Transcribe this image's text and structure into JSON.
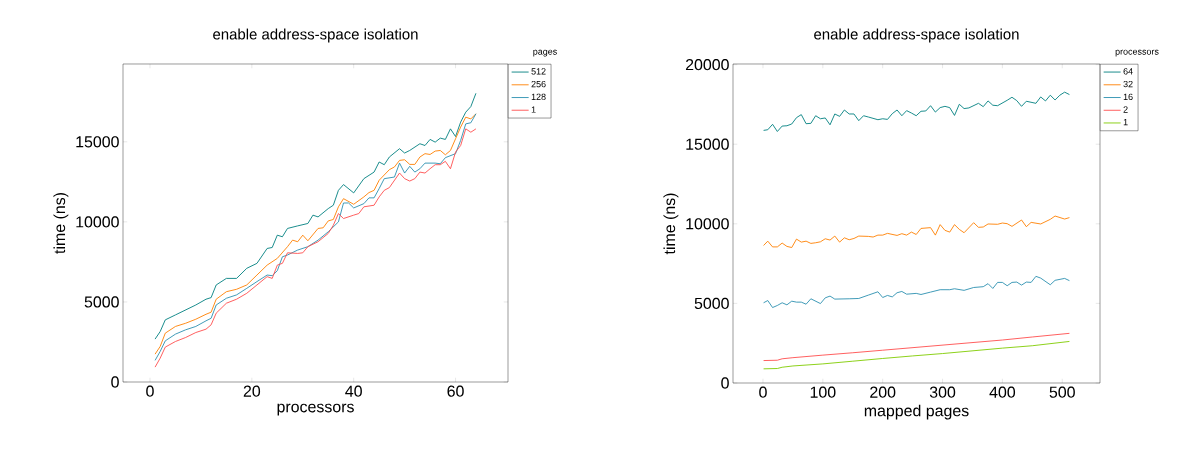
{
  "chart_data": [
    {
      "type": "line",
      "title": "enable address-space isolation",
      "xlabel": "processors",
      "ylabel": "time (ns)",
      "legend_title": "pages",
      "legend": "top right",
      "marker": "none",
      "line_style": "solid",
      "xlim": [
        -5.3,
        70.3
      ],
      "ylim": [
        0,
        19860
      ],
      "xticks": [
        0,
        20,
        40,
        60
      ],
      "yticks": [
        0,
        5000,
        10000,
        15000
      ],
      "series": [
        {
          "name": "512",
          "color": "#008080",
          "x": [
            1,
            2,
            3,
            5,
            7,
            9,
            11,
            12,
            13,
            15,
            17,
            19,
            21,
            23,
            24,
            25,
            26,
            27,
            29,
            31,
            32,
            33,
            35,
            36,
            37,
            38,
            40,
            42,
            44,
            45,
            46,
            47,
            49,
            50,
            51,
            53,
            54,
            55,
            56,
            57,
            58,
            59,
            60,
            61,
            62,
            63,
            64
          ],
          "values": [
            2680,
            3150,
            3880,
            4190,
            4500,
            4810,
            5170,
            5270,
            6060,
            6470,
            6470,
            7100,
            7410,
            8340,
            8400,
            9170,
            9070,
            9590,
            9750,
            9900,
            10420,
            10310,
            10830,
            11040,
            11970,
            12330,
            11810,
            12700,
            13110,
            13740,
            13570,
            14050,
            14570,
            14300,
            14460,
            14880,
            14770,
            15150,
            14980,
            15230,
            15150,
            15810,
            15330,
            16230,
            16850,
            17200,
            18030
          ]
        },
        {
          "name": "256",
          "color": "#ff8000",
          "x": [
            1,
            2,
            3,
            5,
            7,
            9,
            11,
            12,
            13,
            15,
            17,
            19,
            21,
            23,
            25,
            27,
            28,
            29,
            30,
            31,
            33,
            34,
            35,
            36,
            37,
            38,
            40,
            42,
            43,
            44,
            45,
            47,
            48,
            49,
            50,
            51,
            52,
            53,
            54,
            55,
            56,
            57,
            58,
            59,
            60,
            61,
            62,
            63,
            64
          ],
          "values": [
            1740,
            2220,
            3050,
            3470,
            3670,
            3920,
            4230,
            4360,
            5170,
            5640,
            5790,
            6060,
            6680,
            7300,
            7720,
            8450,
            8860,
            8760,
            9170,
            8820,
            9590,
            9630,
            10060,
            10150,
            10940,
            11450,
            11100,
            11560,
            11830,
            11970,
            12600,
            13260,
            13430,
            13840,
            13880,
            13590,
            13590,
            14050,
            14260,
            14210,
            14420,
            14460,
            14190,
            14460,
            15190,
            15920,
            16540,
            16430,
            16750
          ]
        },
        {
          "name": "128",
          "color": "#2a8fb0",
          "x": [
            1,
            2,
            3,
            5,
            7,
            9,
            11,
            12,
            13,
            15,
            17,
            19,
            21,
            23,
            24,
            25,
            26,
            27,
            29,
            31,
            33,
            35,
            37,
            38,
            39,
            40,
            42,
            43,
            44,
            45,
            46,
            48,
            49,
            50,
            51,
            52,
            53,
            54,
            56,
            57,
            58,
            60,
            61,
            62,
            63,
            64
          ],
          "values": [
            1350,
            1910,
            2570,
            2990,
            3260,
            3470,
            3820,
            3980,
            4810,
            5230,
            5440,
            5850,
            6270,
            6680,
            6640,
            6950,
            7820,
            7930,
            8240,
            8450,
            8860,
            9380,
            10000,
            11180,
            11180,
            10870,
            11140,
            11500,
            11500,
            12080,
            12700,
            12800,
            13670,
            13050,
            13470,
            13110,
            13320,
            13670,
            13670,
            13630,
            14010,
            14260,
            15090,
            16120,
            16190,
            16750
          ]
        },
        {
          "name": "1",
          "color": "#ff4d4d",
          "x": [
            1,
            2,
            3,
            5,
            7,
            9,
            11,
            12,
            13,
            15,
            17,
            19,
            21,
            23,
            24,
            25,
            26,
            27,
            29,
            30,
            31,
            33,
            35,
            36,
            37,
            38,
            40,
            41,
            42,
            44,
            45,
            46,
            47,
            49,
            50,
            51,
            52,
            53,
            54,
            55,
            56,
            57,
            58,
            59,
            60,
            61,
            62,
            63,
            64
          ],
          "values": [
            930,
            1490,
            2180,
            2530,
            2780,
            3090,
            3300,
            3570,
            4300,
            4920,
            5170,
            5540,
            6060,
            6580,
            6470,
            7300,
            7410,
            8070,
            8030,
            8070,
            8450,
            8760,
            9280,
            9790,
            10520,
            10210,
            10420,
            10520,
            10940,
            11040,
            11560,
            11970,
            12140,
            13050,
            12700,
            12550,
            12700,
            13110,
            13050,
            13320,
            13570,
            13570,
            13780,
            13320,
            14360,
            14770,
            15810,
            15600,
            15810
          ]
        }
      ]
    },
    {
      "type": "line",
      "title": "enable address-space isolation",
      "xlabel": "mapped pages",
      "ylabel": "time (ns)",
      "legend_title": "processors",
      "legend": "top right",
      "marker": "none",
      "line_style": "solid",
      "xlim": [
        -50.1,
        563.1
      ],
      "ylim": [
        0,
        20040
      ],
      "xticks": [
        0,
        100,
        200,
        300,
        400,
        500
      ],
      "yticks": [
        0,
        5000,
        10000,
        15000,
        20000
      ],
      "series": [
        {
          "name": "64",
          "color": "#008080",
          "x": [
            1,
            8,
            16,
            24,
            32,
            40,
            48,
            56,
            64,
            72,
            80,
            88,
            96,
            104,
            112,
            120,
            128,
            136,
            144,
            152,
            160,
            168,
            176,
            192,
            200,
            208,
            216,
            224,
            232,
            240,
            248,
            256,
            264,
            272,
            280,
            288,
            296,
            304,
            312,
            320,
            328,
            336,
            344,
            360,
            368,
            376,
            384,
            392,
            408,
            416,
            424,
            432,
            440,
            456,
            464,
            472,
            480,
            488,
            496,
            504,
            512
          ],
          "values": [
            15870,
            15910,
            16250,
            15800,
            16140,
            16160,
            16270,
            16670,
            16860,
            16290,
            16310,
            16790,
            16600,
            16650,
            16220,
            16900,
            16750,
            17150,
            16900,
            16900,
            16480,
            16790,
            16710,
            16540,
            16600,
            16560,
            16920,
            17150,
            16790,
            17110,
            16960,
            16790,
            17070,
            17090,
            17420,
            17020,
            17300,
            17380,
            17300,
            16810,
            17510,
            17240,
            17280,
            17570,
            17360,
            17720,
            17450,
            17420,
            17760,
            17950,
            17740,
            17380,
            17700,
            17570,
            17970,
            17720,
            18080,
            17780,
            18080,
            18270,
            18120
          ]
        },
        {
          "name": "32",
          "color": "#ff8000",
          "x": [
            1,
            8,
            16,
            24,
            32,
            40,
            48,
            56,
            64,
            72,
            80,
            88,
            96,
            104,
            112,
            120,
            128,
            136,
            144,
            152,
            160,
            176,
            184,
            192,
            200,
            208,
            224,
            232,
            240,
            248,
            256,
            264,
            280,
            288,
            296,
            304,
            312,
            320,
            328,
            336,
            352,
            360,
            368,
            376,
            392,
            400,
            408,
            416,
            432,
            440,
            448,
            464,
            480,
            488,
            504,
            512
          ],
          "values": [
            8640,
            8910,
            8550,
            8550,
            8790,
            8580,
            8510,
            9040,
            8850,
            8910,
            8770,
            8810,
            8870,
            9060,
            8980,
            9230,
            8850,
            9120,
            9000,
            9080,
            9230,
            9210,
            9170,
            9290,
            9290,
            9400,
            9270,
            9380,
            9290,
            9480,
            9330,
            9710,
            9760,
            9290,
            9950,
            9590,
            9480,
            9950,
            9650,
            9440,
            10070,
            9780,
            9800,
            9990,
            9970,
            10050,
            10010,
            9840,
            10240,
            9820,
            10090,
            9990,
            10280,
            10490,
            10300,
            10390
          ]
        },
        {
          "name": "16",
          "color": "#2a8fb0",
          "x": [
            1,
            8,
            16,
            24,
            32,
            40,
            48,
            56,
            64,
            72,
            80,
            96,
            104,
            112,
            120,
            144,
            160,
            176,
            192,
            200,
            208,
            216,
            224,
            232,
            240,
            256,
            264,
            280,
            296,
            312,
            320,
            336,
            352,
            368,
            376,
            384,
            392,
            400,
            408,
            416,
            424,
            432,
            440,
            448,
            456,
            464,
            480,
            488,
            504,
            512
          ],
          "values": [
            5040,
            5180,
            4740,
            4870,
            5040,
            4910,
            5140,
            5080,
            5080,
            4950,
            5290,
            4990,
            5350,
            5460,
            5270,
            5290,
            5310,
            5520,
            5730,
            5370,
            5500,
            5410,
            5670,
            5750,
            5580,
            5630,
            5560,
            5710,
            5860,
            5860,
            5920,
            5820,
            6000,
            6050,
            6240,
            5940,
            6320,
            6320,
            6110,
            6320,
            6340,
            6150,
            6340,
            6320,
            6700,
            6590,
            6170,
            6450,
            6570,
            6430
          ]
        },
        {
          "name": "2",
          "color": "#ff4d4d",
          "x": [
            1,
            24,
            32,
            50,
            100,
            150,
            200,
            250,
            300,
            350,
            400,
            450,
            512
          ],
          "values": [
            1410,
            1430,
            1520,
            1590,
            1750,
            1900,
            2060,
            2220,
            2380,
            2540,
            2700,
            2890,
            3120
          ]
        },
        {
          "name": "1",
          "color": "#80cc00",
          "x": [
            1,
            24,
            32,
            50,
            100,
            150,
            200,
            250,
            300,
            350,
            400,
            450,
            512
          ],
          "values": [
            890,
            910,
            990,
            1070,
            1200,
            1370,
            1540,
            1700,
            1850,
            2020,
            2190,
            2340,
            2610
          ]
        }
      ]
    }
  ]
}
